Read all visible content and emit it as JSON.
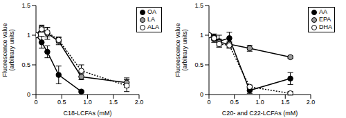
{
  "chart_data": [
    {
      "type": "line",
      "x_label": "C18-LCFAs (mM)",
      "y_label": "Fluorescence value (arbitrary units)",
      "xlim": [
        0,
        2
      ],
      "xticks": [
        0,
        0.5,
        {
          "value": 1,
          "label": "1.0"
        },
        1.5,
        {
          "value": 2,
          "label": "2.0"
        }
      ],
      "ylim": [
        0,
        1.5
      ],
      "yticks": [
        0,
        0.5,
        1,
        1.5
      ],
      "legend": "top-right",
      "series": [
        {
          "name": "OA",
          "color": "#000000",
          "marker": "circle",
          "line_style": "solid",
          "x": [
            0,
            0.11,
            0.22,
            0.44,
            0.88
          ],
          "values": [
            1.0,
            0.88,
            0.72,
            0.33,
            0.05
          ],
          "errors": [
            0,
            0.1,
            0.1,
            0.15,
            0.02
          ]
        },
        {
          "name": "LA",
          "color": "#999999",
          "marker": "circle",
          "line_style": "solid",
          "x": [
            0,
            0.11,
            0.22,
            0.44,
            0.88,
            1.76
          ],
          "values": [
            1.0,
            1.12,
            1.03,
            0.9,
            0.3,
            0.2
          ],
          "errors": [
            0,
            0.05,
            0.1,
            0.06,
            0.05,
            0.08
          ]
        },
        {
          "name": "ALA",
          "color": "#ffffff",
          "marker": "circle",
          "line_style": "dotted",
          "x": [
            0,
            0.11,
            0.22,
            0.44,
            0.88,
            1.76
          ],
          "values": [
            1.0,
            1.1,
            1.05,
            0.92,
            0.4,
            0.15
          ],
          "errors": [
            0,
            0.05,
            0.08,
            0.05,
            0.1,
            0.1
          ]
        }
      ]
    },
    {
      "type": "line",
      "x_label": "C20- and C22-LCFAs (mM)",
      "y_label": "Fluorescence value (arbitrary units)",
      "xlim": [
        0,
        2
      ],
      "xticks": [
        0,
        0.5,
        {
          "value": 1,
          "label": "1.0"
        },
        1.5,
        {
          "value": 2,
          "label": "2.0"
        }
      ],
      "ylim": [
        0,
        1.5
      ],
      "yticks": [
        0,
        0.5,
        1,
        1.5
      ],
      "legend": "top-right",
      "series": [
        {
          "name": "AA",
          "color": "#000000",
          "marker": "circle",
          "line_style": "solid",
          "x": [
            0,
            0.1,
            0.2,
            0.4,
            0.8,
            1.6
          ],
          "values": [
            1.0,
            0.97,
            0.9,
            0.95,
            0.07,
            0.27
          ],
          "errors": [
            0,
            0.05,
            0.1,
            0.1,
            0.05,
            0.1
          ]
        },
        {
          "name": "EPA",
          "color": "#999999",
          "marker": "circle",
          "line_style": "solid",
          "x": [
            0,
            0.1,
            0.2,
            0.4,
            0.8,
            1.6
          ],
          "values": [
            1.0,
            0.93,
            0.88,
            0.85,
            0.78,
            0.63
          ],
          "errors": [
            0,
            0.05,
            0.05,
            0.05,
            0.05,
            0.02
          ]
        },
        {
          "name": "DHA",
          "color": "#ffffff",
          "marker": "circle",
          "line_style": "dotted",
          "x": [
            0,
            0.1,
            0.2,
            0.4,
            0.8,
            1.6
          ],
          "values": [
            1.0,
            0.95,
            0.85,
            0.83,
            0.13,
            0.02
          ],
          "errors": [
            0,
            0.03,
            0.05,
            0.05,
            0.03,
            0.03
          ]
        }
      ]
    }
  ]
}
